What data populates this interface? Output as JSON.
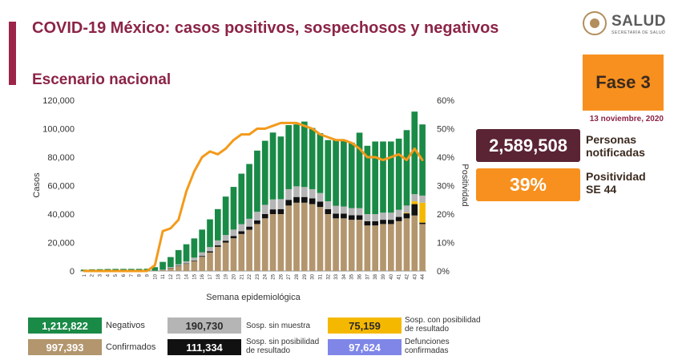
{
  "header": {
    "title": "COVID-19 México: casos positivos, sospechosos y negativos",
    "subtitle": "Escenario nacional",
    "logo_name": "SALUD",
    "logo_sub": "SECRETARÍA DE SALUD",
    "phase": "Fase 3",
    "date": "13 noviembre, 2020"
  },
  "kpis": {
    "notified_value": "2,589,508",
    "notified_label_1": "Personas",
    "notified_label_2": "notificadas",
    "positivity_value": "39%",
    "positivity_label_1": "Positividad",
    "positivity_label_2": "SE 44"
  },
  "legend": {
    "negativos_value": "1,212,822",
    "negativos_label": "Negativos",
    "sin_muestra_value": "190,730",
    "sin_muestra_label": "Sosp. sin muestra",
    "con_posibilidad_value": "75,159",
    "con_posibilidad_label_1": "Sosp. con posibilidad",
    "con_posibilidad_label_2": "de resultado",
    "confirmados_value": "997,393",
    "confirmados_label": "Confirmados",
    "sin_posibilidad_value": "111,334",
    "sin_posibilidad_label_1": "Sosp. sin posibilidad",
    "sin_posibilidad_label_2": "de resultado",
    "defunciones_value": "97,624",
    "defunciones_label_1": "Defunciones",
    "defunciones_label_2": "confirmadas"
  },
  "colors": {
    "confirmados": "#b3966e",
    "sin_posibilidad": "#111111",
    "sin_muestra": "#b5b5b5",
    "negativos": "#1a8a47",
    "con_posibilidad": "#f5b800",
    "defunciones": "#7f86e8",
    "positividad_line": "#f39a1b",
    "title": "#8c2447"
  },
  "chart_data": {
    "type": "bar",
    "stacked": true,
    "xlabel": "Semana epidemiológica",
    "ylabel": "Casos",
    "y2label": "Positividad",
    "ylim": [
      0,
      120000
    ],
    "y2lim": [
      0,
      60
    ],
    "yticks": [
      "0",
      "20,000",
      "40,000",
      "60,000",
      "80,000",
      "100,000",
      "120,000"
    ],
    "y2ticks": [
      "0%",
      "10%",
      "20%",
      "30%",
      "40%",
      "50%",
      "60%"
    ],
    "categories": [
      "1",
      "2",
      "3",
      "4",
      "5",
      "6",
      "7",
      "8",
      "9",
      "10",
      "11",
      "12",
      "13",
      "14",
      "15",
      "16",
      "17",
      "18",
      "19",
      "20",
      "21",
      "22",
      "23",
      "24",
      "25",
      "26",
      "27",
      "28",
      "29",
      "30",
      "31",
      "32",
      "33",
      "34",
      "35",
      "36",
      "37",
      "38",
      "39",
      "40",
      "41",
      "42",
      "43",
      "44"
    ],
    "series": [
      {
        "name": "Confirmados",
        "values": [
          0,
          0,
          0,
          0,
          0,
          0,
          0,
          0,
          0,
          100,
          600,
          2000,
          3500,
          5000,
          7000,
          10000,
          13000,
          17000,
          20000,
          23000,
          26000,
          29000,
          33000,
          37000,
          40000,
          40000,
          46000,
          48000,
          48000,
          47000,
          45000,
          40000,
          37000,
          37000,
          36000,
          36000,
          32000,
          32000,
          33000,
          33000,
          35000,
          37000,
          39000,
          33000
        ]
      },
      {
        "name": "Sosp. sin posibilidad de resultado",
        "values": [
          0,
          0,
          0,
          0,
          0,
          0,
          0,
          0,
          0,
          0,
          0,
          100,
          200,
          300,
          400,
          600,
          800,
          1000,
          1300,
          1600,
          1900,
          2200,
          2600,
          3000,
          3300,
          3500,
          4000,
          4000,
          4000,
          4000,
          3800,
          3500,
          3300,
          3300,
          3200,
          3200,
          3000,
          3000,
          3000,
          3000,
          3000,
          3500,
          8000,
          1000
        ]
      },
      {
        "name": "Sosp. con posibilidad de resultado",
        "values": [
          0,
          0,
          0,
          0,
          0,
          0,
          0,
          0,
          0,
          0,
          0,
          0,
          0,
          0,
          0,
          0,
          0,
          0,
          0,
          0,
          0,
          0,
          0,
          0,
          0,
          0,
          0,
          0,
          0,
          0,
          0,
          0,
          0,
          0,
          0,
          0,
          0,
          0,
          0,
          0,
          0,
          500,
          2000,
          14000
        ]
      },
      {
        "name": "Sosp. sin muestra",
        "values": [
          0,
          0,
          0,
          0,
          0,
          0,
          0,
          0,
          0,
          100,
          300,
          700,
          1000,
          1500,
          2000,
          2500,
          3000,
          3500,
          4000,
          4500,
          5000,
          5500,
          6000,
          6500,
          7000,
          7000,
          7500,
          7500,
          7000,
          6500,
          6000,
          5500,
          5500,
          5000,
          5000,
          5000,
          5000,
          5000,
          5000,
          5000,
          5000,
          5000,
          5000,
          5000
        ]
      },
      {
        "name": "Negativos",
        "values": [
          1000,
          1200,
          1300,
          1400,
          1500,
          1500,
          1500,
          1500,
          1600,
          2500,
          5500,
          7000,
          10000,
          12000,
          13500,
          16000,
          19500,
          22000,
          27000,
          30000,
          35500,
          38500,
          43000,
          45000,
          47000,
          44000,
          45000,
          43500,
          46000,
          43000,
          42000,
          43000,
          46000,
          46000,
          46000,
          53000,
          48000,
          51000,
          50000,
          50000,
          50000,
          53000,
          58000,
          50000
        ]
      },
      {
        "name": "Positividad",
        "axis": "right",
        "values": [
          0,
          0,
          0,
          0,
          0,
          0,
          0,
          0,
          0,
          2,
          14,
          15,
          18,
          28,
          35,
          40,
          42,
          41,
          43,
          46,
          48,
          48,
          50,
          50,
          51,
          52,
          52,
          52,
          51,
          50,
          48,
          47,
          46,
          46,
          45,
          43,
          40,
          40,
          39,
          40,
          41,
          39,
          43,
          39
        ]
      }
    ]
  }
}
